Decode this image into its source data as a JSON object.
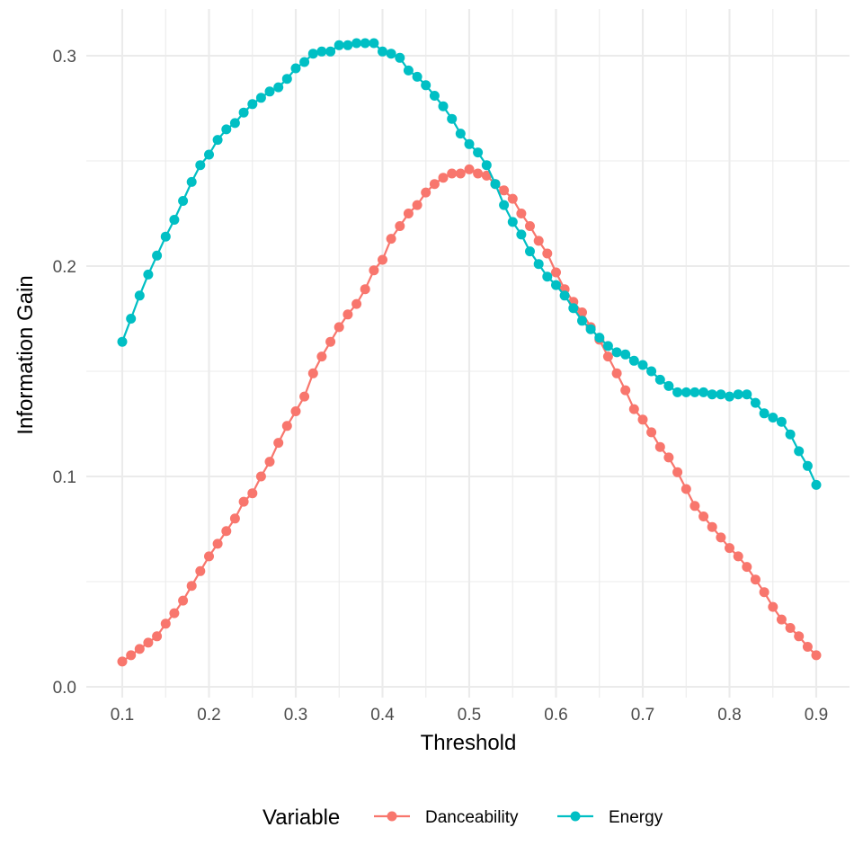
{
  "chart_data": {
    "type": "line",
    "title": "",
    "xlabel": "Threshold",
    "ylabel": "Information Gain",
    "xlim": [
      0.1,
      0.9
    ],
    "ylim": [
      0.0,
      0.3
    ],
    "x_ticks": [
      "0.1",
      "0.2",
      "0.3",
      "0.4",
      "0.5",
      "0.6",
      "0.7",
      "0.8",
      "0.9"
    ],
    "y_ticks": [
      "0.0",
      "0.1",
      "0.2",
      "0.3"
    ],
    "grid": true,
    "legend": {
      "title": "Variable",
      "position": "bottom"
    },
    "x": [
      0.1,
      0.11,
      0.12,
      0.13,
      0.14,
      0.15,
      0.16,
      0.17,
      0.18,
      0.19,
      0.2,
      0.21,
      0.22,
      0.23,
      0.24,
      0.25,
      0.26,
      0.27,
      0.28,
      0.29,
      0.3,
      0.31,
      0.32,
      0.33,
      0.34,
      0.35,
      0.36,
      0.37,
      0.38,
      0.39,
      0.4,
      0.41,
      0.42,
      0.43,
      0.44,
      0.45,
      0.46,
      0.47,
      0.48,
      0.49,
      0.5,
      0.51,
      0.52,
      0.53,
      0.54,
      0.55,
      0.56,
      0.57,
      0.58,
      0.59,
      0.6,
      0.61,
      0.62,
      0.63,
      0.64,
      0.65,
      0.66,
      0.67,
      0.68,
      0.69,
      0.7,
      0.71,
      0.72,
      0.73,
      0.74,
      0.75,
      0.76,
      0.77,
      0.78,
      0.79,
      0.8,
      0.81,
      0.82,
      0.83,
      0.84,
      0.85,
      0.86,
      0.87,
      0.88,
      0.89,
      0.9
    ],
    "series": [
      {
        "name": "Danceability",
        "color": "#F8766D",
        "values": [
          0.012,
          0.015,
          0.018,
          0.021,
          0.024,
          0.03,
          0.035,
          0.041,
          0.048,
          0.055,
          0.062,
          0.068,
          0.074,
          0.08,
          0.088,
          0.092,
          0.1,
          0.107,
          0.116,
          0.124,
          0.131,
          0.138,
          0.149,
          0.157,
          0.164,
          0.171,
          0.177,
          0.182,
          0.189,
          0.198,
          0.203,
          0.213,
          0.219,
          0.225,
          0.229,
          0.235,
          0.239,
          0.242,
          0.244,
          0.244,
          0.246,
          0.244,
          0.243,
          0.239,
          0.236,
          0.232,
          0.225,
          0.219,
          0.212,
          0.206,
          0.197,
          0.189,
          0.183,
          0.178,
          0.171,
          0.165,
          0.157,
          0.149,
          0.141,
          0.132,
          0.127,
          0.121,
          0.114,
          0.109,
          0.102,
          0.094,
          0.086,
          0.081,
          0.076,
          0.071,
          0.066,
          0.062,
          0.057,
          0.051,
          0.045,
          0.038,
          0.032,
          0.028,
          0.024,
          0.019,
          0.015
        ]
      },
      {
        "name": "Energy",
        "color": "#00BFC4",
        "values": [
          0.164,
          0.175,
          0.186,
          0.196,
          0.205,
          0.214,
          0.222,
          0.231,
          0.24,
          0.248,
          0.253,
          0.26,
          0.265,
          0.268,
          0.273,
          0.277,
          0.28,
          0.283,
          0.285,
          0.289,
          0.294,
          0.297,
          0.301,
          0.302,
          0.302,
          0.305,
          0.305,
          0.306,
          0.306,
          0.306,
          0.302,
          0.301,
          0.299,
          0.293,
          0.29,
          0.286,
          0.281,
          0.276,
          0.27,
          0.263,
          0.258,
          0.254,
          0.248,
          0.239,
          0.229,
          0.221,
          0.215,
          0.207,
          0.201,
          0.195,
          0.191,
          0.186,
          0.18,
          0.174,
          0.17,
          0.166,
          0.162,
          0.159,
          0.158,
          0.155,
          0.153,
          0.15,
          0.146,
          0.143,
          0.14,
          0.14,
          0.14,
          0.14,
          0.139,
          0.139,
          0.138,
          0.139,
          0.139,
          0.135,
          0.13,
          0.128,
          0.126,
          0.12,
          0.112,
          0.105,
          0.096
        ]
      }
    ]
  }
}
